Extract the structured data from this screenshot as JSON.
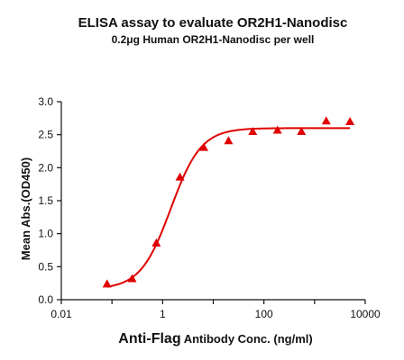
{
  "chart_data": {
    "type": "scatter",
    "title": "ELISA assay to evaluate OR2H1-Nanodisc",
    "subtitle": "0.2μg Human OR2H1-Nanodisc per well",
    "xlabel_main": "Anti-Flag",
    "xlabel_rest": " Antibody Conc. (ng/ml)",
    "ylabel": "Mean Abs.(OD450)",
    "x_scale": "log",
    "xlim": [
      0.01,
      10000
    ],
    "ylim": [
      0,
      3.0
    ],
    "x_ticks": [
      0.01,
      1,
      100,
      10000
    ],
    "x_tick_labels": [
      "0.01",
      "1",
      "100",
      "10000"
    ],
    "y_ticks": [
      0,
      0.5,
      1.0,
      1.5,
      2.0,
      2.5,
      3.0
    ],
    "y_tick_labels": [
      "0.0",
      "0.5",
      "1.0",
      "1.5",
      "2.0",
      "2.5",
      "3.0"
    ],
    "grid": false,
    "marker_color": "#e00000",
    "line_color": "#e00000",
    "series": [
      {
        "x": [
          0.08,
          0.25,
          0.75,
          2.2,
          6.5,
          20,
          60,
          185,
          550,
          1700,
          5000
        ],
        "y": [
          0.24,
          0.32,
          0.86,
          1.86,
          2.31,
          2.41,
          2.55,
          2.57,
          2.55,
          2.71,
          2.7
        ]
      }
    ],
    "fit_curve": {
      "model": "4PL",
      "bottom": 0.16,
      "top": 2.6,
      "ec50": 1.45,
      "hill": 1.45
    }
  }
}
